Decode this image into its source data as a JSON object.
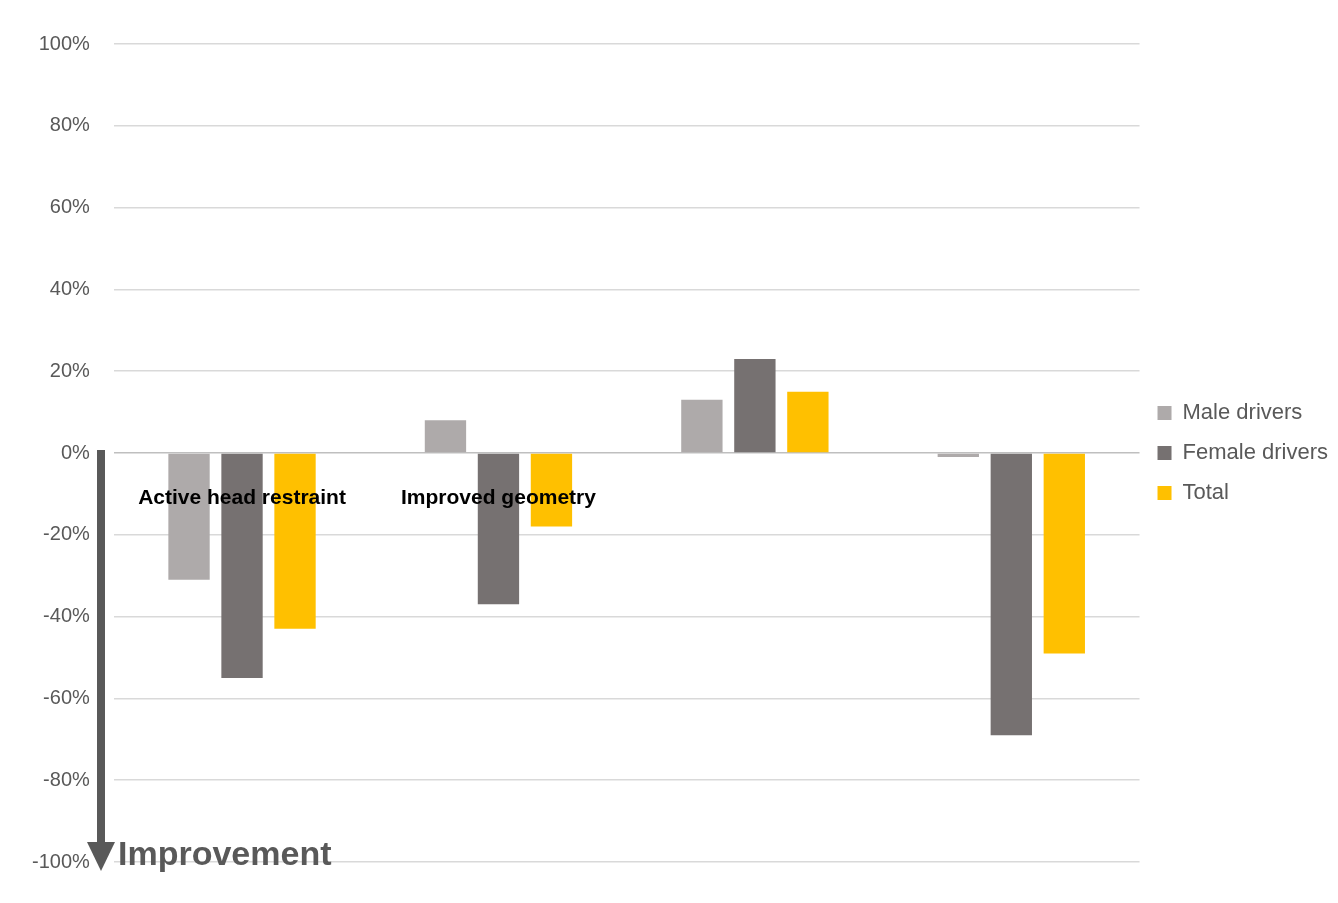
{
  "chart_data": {
    "type": "bar",
    "categories": [
      "Active head restraint",
      "Improved geometry",
      null,
      null
    ],
    "series": [
      {
        "name": "Male drivers",
        "color": "#aeaaaa",
        "values": [
          -31,
          8,
          13,
          -1
        ]
      },
      {
        "name": "Female drivers",
        "color": "#767171",
        "values": [
          -55,
          -37,
          23,
          -69
        ]
      },
      {
        "name": "Total",
        "color": "#ffc000",
        "values": [
          -43,
          -18,
          15,
          -49
        ]
      }
    ],
    "ylim": [
      -100,
      100
    ],
    "yticks": [
      {
        "value": -100,
        "label": "-100%"
      },
      {
        "value": -80,
        "label": "-80%"
      },
      {
        "value": -60,
        "label": "-60%"
      },
      {
        "value": -40,
        "label": "-40%"
      },
      {
        "value": -20,
        "label": "-20%"
      },
      {
        "value": 0,
        "label": "0%"
      },
      {
        "value": 20,
        "label": "20%"
      },
      {
        "value": 40,
        "label": "40%"
      },
      {
        "value": 60,
        "label": "60%"
      },
      {
        "value": 80,
        "label": "80%"
      },
      {
        "value": 100,
        "label": "100%"
      }
    ],
    "grid": "y",
    "legend": "right",
    "annotations": [
      "Improvement"
    ]
  }
}
